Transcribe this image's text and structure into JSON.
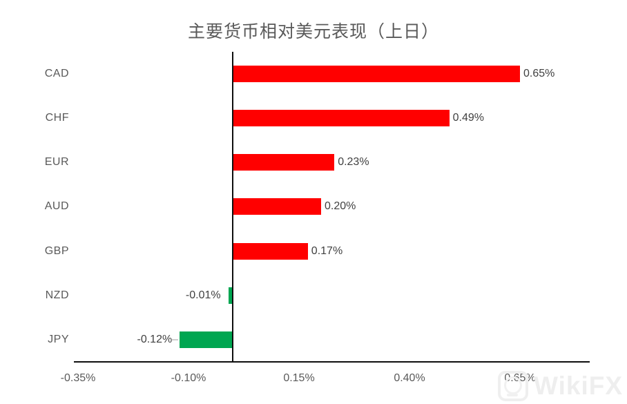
{
  "chart_data": {
    "type": "bar",
    "orientation": "horizontal",
    "title": "主要货币相对美元表现（上日）",
    "unit": "%",
    "categories": [
      "CAD",
      "CHF",
      "EUR",
      "AUD",
      "GBP",
      "NZD",
      "JPY"
    ],
    "values": [
      0.65,
      0.49,
      0.23,
      0.2,
      0.17,
      -0.01,
      -0.12
    ],
    "value_labels": [
      "0.65%",
      "0.49%",
      "0.23%",
      "0.20%",
      "0.17%",
      "-0.01%",
      "-0.12%"
    ],
    "x_tick_labels": [
      "-0.35%",
      "-0.10%",
      "0.15%",
      "0.40%",
      "0.65%"
    ],
    "x_tick_values": [
      -0.35,
      -0.1,
      0.15,
      0.4,
      0.65
    ],
    "xlim": [
      -0.36,
      0.81
    ],
    "grid": false,
    "legend": false,
    "positive_color": "#FF0000",
    "negative_color": "#00A651",
    "leader_line_categories": [
      "JPY"
    ]
  },
  "watermark": {
    "text": "WikiFX",
    "icon": "wikifx-logo-icon",
    "color": "#EEEEEE"
  },
  "colors": {
    "background": "#FFFFFF",
    "axis": "#0D0D0D",
    "title_text": "#595959",
    "category_text": "#595959",
    "value_text": "#404040",
    "tick_text": "#595959"
  }
}
